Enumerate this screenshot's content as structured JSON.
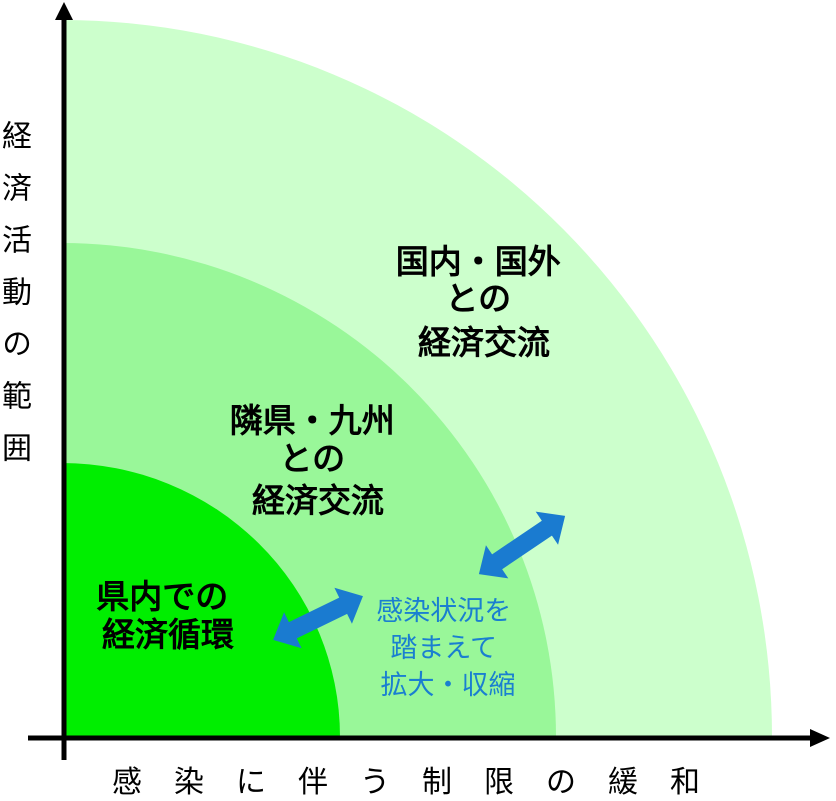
{
  "diagram": {
    "y_axis_label": "経済活動の範囲",
    "x_axis_label": "感染に伴う制限の緩和",
    "zones": [
      {
        "id": "inner",
        "lines": [
          "県内での",
          "経済循環"
        ],
        "color": "#00ee00"
      },
      {
        "id": "middle",
        "lines": [
          "隣県・九州",
          "との",
          "経済交流"
        ],
        "color": "#99f799"
      },
      {
        "id": "outer",
        "lines": [
          "国内・国外",
          "との",
          "経済交流"
        ],
        "color": "#ccffcc"
      }
    ],
    "note": {
      "lines": [
        "感染状況を",
        "踏まえて",
        "拡大・収縮"
      ],
      "color": "#1a7fd0"
    },
    "arrow_color": "#1a7bd0"
  }
}
